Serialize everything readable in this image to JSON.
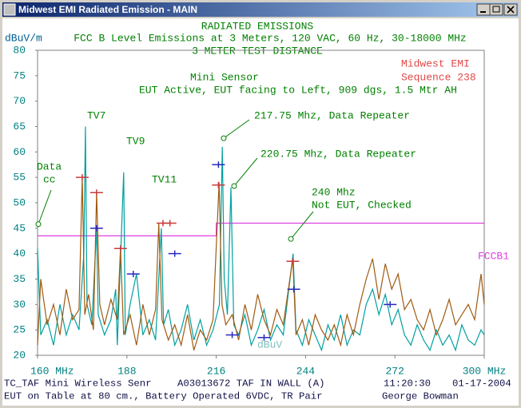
{
  "window_title": "Midwest EMI Radiated Emission - MAIN",
  "chart_data": {
    "type": "line",
    "titles": [
      "RADIATED EMISSIONS",
      "FCC B Level Emissions at 3 Meters, 120 VAC, 60 Hz, 30-18000 MHz",
      "3 METER TEST DISTANCE"
    ],
    "y_label": "dBuV/m",
    "xlim": [
      160,
      300
    ],
    "ylim": [
      20,
      80
    ],
    "xticks": [
      {
        "value": 160,
        "label": "160 MHz"
      },
      188,
      216,
      244,
      272,
      {
        "value": 300,
        "label": "300 MHz"
      }
    ],
    "yticks": [
      20,
      25,
      30,
      35,
      40,
      45,
      50,
      55,
      60,
      65,
      70,
      75,
      80
    ],
    "series": [
      {
        "name": "Limit",
        "style": "line",
        "color": "#e040e0",
        "x": [
          160,
          216,
          216,
          300
        ],
        "values": [
          43.5,
          43.5,
          46,
          46
        ]
      },
      {
        "name": "Trace 1",
        "style": "line",
        "color": "#00a0a0",
        "x": [
          160,
          161,
          163,
          165,
          167,
          169,
          171,
          173,
          174.5,
          175,
          175.5,
          177,
          178.5,
          179,
          181,
          183,
          184.5,
          185,
          187,
          187.5,
          189,
          191,
          193,
          195,
          197,
          198.8,
          199.5,
          201,
          203,
          205,
          207,
          209,
          211,
          213,
          215,
          217,
          217.9,
          218.5,
          219.5,
          220.6,
          221.5,
          223,
          225,
          227,
          229,
          231,
          233,
          235,
          237,
          240.1,
          241,
          243,
          245,
          247,
          249,
          251,
          253,
          255,
          257,
          259,
          261,
          263,
          265,
          267,
          269,
          271,
          273,
          275,
          277,
          279,
          281,
          283,
          285,
          287,
          289,
          291,
          293,
          295,
          297,
          299,
          300
        ],
        "values": [
          41,
          24,
          27,
          22,
          30,
          24,
          28,
          25,
          40,
          65,
          30,
          26,
          45,
          28,
          24,
          27,
          33,
          22,
          56,
          24,
          30,
          36,
          24,
          27,
          23,
          45,
          26,
          29,
          22,
          25,
          30,
          23,
          27,
          22,
          25,
          30,
          61,
          35,
          28,
          53,
          26,
          24,
          28,
          22,
          25,
          29,
          23,
          26,
          24,
          40,
          25,
          22,
          27,
          24,
          21,
          26,
          23,
          28,
          22,
          25,
          24,
          30,
          33,
          28,
          32,
          26,
          29,
          24,
          22,
          26,
          23,
          21,
          25,
          22,
          24,
          21,
          26,
          23,
          22,
          25,
          24
        ]
      },
      {
        "name": "Trace 2",
        "style": "line",
        "color": "#a05a10",
        "x": [
          160,
          161,
          163,
          165,
          167,
          169,
          171,
          173,
          174,
          174.8,
          176,
          177.5,
          178.5,
          179.5,
          181,
          183,
          185,
          186,
          187,
          189,
          191,
          193,
          195,
          197,
          198,
          199,
          201,
          203,
          205,
          207,
          209,
          211,
          213,
          215,
          216.9,
          217.8,
          219,
          221,
          223,
          225,
          227,
          229,
          231,
          233,
          235,
          237,
          240,
          241,
          243,
          245,
          247,
          249,
          251,
          253,
          255,
          257,
          259,
          261,
          263,
          265,
          267,
          269,
          271,
          273,
          275,
          277,
          279,
          281,
          283,
          285,
          287,
          289,
          291,
          293,
          295,
          297,
          299,
          300
        ],
        "values": [
          22,
          35,
          26,
          30,
          24,
          33,
          27,
          29,
          55,
          28,
          32,
          25,
          52,
          30,
          26,
          31,
          27,
          41,
          24,
          28,
          22,
          30,
          24,
          29,
          46,
          27,
          23,
          26,
          22,
          28,
          21,
          25,
          23,
          27,
          54,
          30,
          26,
          28,
          23,
          30,
          25,
          32,
          27,
          24,
          29,
          26,
          39,
          24,
          27,
          22,
          28,
          25,
          23,
          26,
          22,
          28,
          24,
          30,
          35,
          39,
          31,
          38,
          33,
          36,
          29,
          31,
          27,
          25,
          29,
          24,
          27,
          31,
          26,
          28,
          30,
          27,
          36,
          30
        ]
      },
      {
        "name": "Peaks A",
        "style": "marker",
        "color": "#c83c3c",
        "x": [
          174,
          178.5,
          186,
          199.3,
          201.5,
          216.7,
          240
        ],
        "values": [
          55,
          52,
          41,
          46,
          46,
          53.5,
          38.5
        ]
      },
      {
        "name": "Peaks B",
        "style": "marker",
        "color": "#2828c0",
        "x": [
          178.5,
          190,
          203,
          216.7,
          221,
          231,
          240.3,
          270.5
        ],
        "values": [
          45,
          36,
          40,
          57.5,
          24,
          23.5,
          33,
          30
        ]
      }
    ],
    "annotations": [
      {
        "text": "Midwest EMI",
        "color": "#e04848"
      },
      {
        "text": "Sequence 238",
        "color": "#e04848"
      },
      {
        "text": "Mini Sensor",
        "color": "#008000"
      },
      {
        "text": "EUT Active, EUT facing to Left, 909 dgs, 1.5 Mtr AH",
        "color": "#008000"
      },
      {
        "text": "TV7",
        "color": "#008000"
      },
      {
        "text": "TV9",
        "color": "#008000"
      },
      {
        "text": "TV11",
        "color": "#008000"
      },
      {
        "text": "Data",
        "color": "#008000",
        "point": {
          "x": 160.25,
          "y": 45.8
        }
      },
      {
        "text": "cc",
        "color": "#008000"
      },
      {
        "text": "217.75 Mhz, Data Repeater",
        "color": "#008000",
        "point": {
          "x": 218.35,
          "y": 62.7
        }
      },
      {
        "text": "220.75 Mhz, Data Repeater",
        "color": "#008000",
        "point": {
          "x": 221.6,
          "y": 53.3
        }
      },
      {
        "text": "240 Mhz",
        "color": "#008000",
        "point": {
          "x": 239.4,
          "y": 42.9
        }
      },
      {
        "text": "Not EUT, Checked",
        "color": "#008000"
      },
      {
        "text": "FCCB1",
        "color": "#e040e0"
      },
      {
        "text": "dBuV",
        "color": "#7fbfbf"
      }
    ],
    "footer": [
      [
        "TC_TAF Mini Wireless Senr",
        "A03013672 TAF IN WALL (A)",
        "11:20:30",
        "01-17-2004"
      ],
      [
        "EUT on Table at 80 cm., Battery Operated 6VDC, TR Pair",
        "George Bowman"
      ]
    ]
  }
}
